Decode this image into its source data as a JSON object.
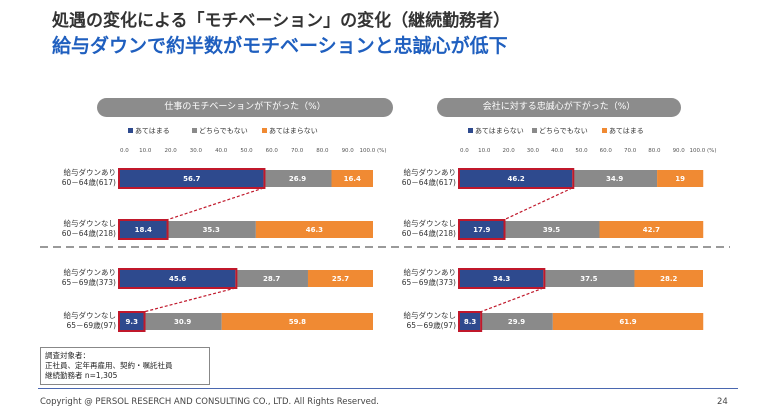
{
  "title": "処遇の変化による「モチベーション」の変化（継続勤務者）",
  "subtitle": "給与ダウンで約半数がモチベーションと忠誠心が低下",
  "note": {
    "line1": "調査対象者：",
    "line2": "正社員、定年再雇用、契約・嘱託社員",
    "line3": "継続勤務者 n=1,305"
  },
  "footer": {
    "copyright": "Copyright @ PERSOL RESERCH AND CONSULTING CO., LTD. All Rights Reserved.",
    "page": "24"
  },
  "colors": {
    "blue": "#2e4a8e",
    "gray": "#8a8a8a",
    "orange": "#f08a33",
    "highlight": "#c0182b"
  },
  "chart_data": [
    {
      "type": "bar",
      "stacked": true,
      "orientation": "horizontal",
      "title": "仕事のモチベーションが下がった（%）",
      "xlim": [
        0,
        100
      ],
      "ticks": [
        "0.0",
        "10.0",
        "20.0",
        "30.0",
        "40.0",
        "50.0",
        "60.0",
        "70.0",
        "80.0",
        "90.0",
        "100.0 (%)"
      ],
      "categories": [
        [
          "給与ダウンあり",
          "60－64歳(617)"
        ],
        [
          "給与ダウンなし",
          "60－64歳(218)"
        ],
        [
          "給与ダウンあり",
          "65－69歳(373)"
        ],
        [
          "給与ダウンなし",
          "65－69歳(97)"
        ]
      ],
      "series": [
        {
          "name": "あてはまる",
          "color": "#2e4a8e",
          "values": [
            56.7,
            18.4,
            45.6,
            9.3
          ]
        },
        {
          "name": "どちらでもない",
          "color": "#8a8a8a",
          "values": [
            26.9,
            35.3,
            28.7,
            30.9
          ]
        },
        {
          "name": "あてはまらない",
          "color": "#f08a33",
          "values": [
            16.4,
            46.3,
            25.7,
            59.8
          ]
        }
      ],
      "legend": "top"
    },
    {
      "type": "bar",
      "stacked": true,
      "orientation": "horizontal",
      "title": "会社に対する忠誠心が下がった（%）",
      "xlim": [
        0,
        100
      ],
      "ticks": [
        "0.0",
        "10.0",
        "20.0",
        "30.0",
        "40.0",
        "50.0",
        "60.0",
        "70.0",
        "80.0",
        "90.0",
        "100.0 (%)"
      ],
      "categories": [
        [
          "給与ダウンあり",
          "60－64歳(617)"
        ],
        [
          "給与ダウンなし",
          "60－64歳(218)"
        ],
        [
          "給与ダウンあり",
          "65－69歳(373)"
        ],
        [
          "給与ダウンなし",
          "65－69歳(97)"
        ]
      ],
      "series": [
        {
          "name": "あてはまらない",
          "color": "#2e4a8e",
          "values": [
            46.2,
            17.9,
            34.3,
            8.3
          ]
        },
        {
          "name": "どちらでもない",
          "color": "#8a8a8a",
          "values": [
            34.9,
            39.5,
            37.5,
            29.9
          ]
        },
        {
          "name": "あてはまる",
          "color": "#f08a33",
          "values": [
            19.0,
            42.7,
            28.2,
            61.9
          ]
        }
      ],
      "legend": "top"
    }
  ]
}
